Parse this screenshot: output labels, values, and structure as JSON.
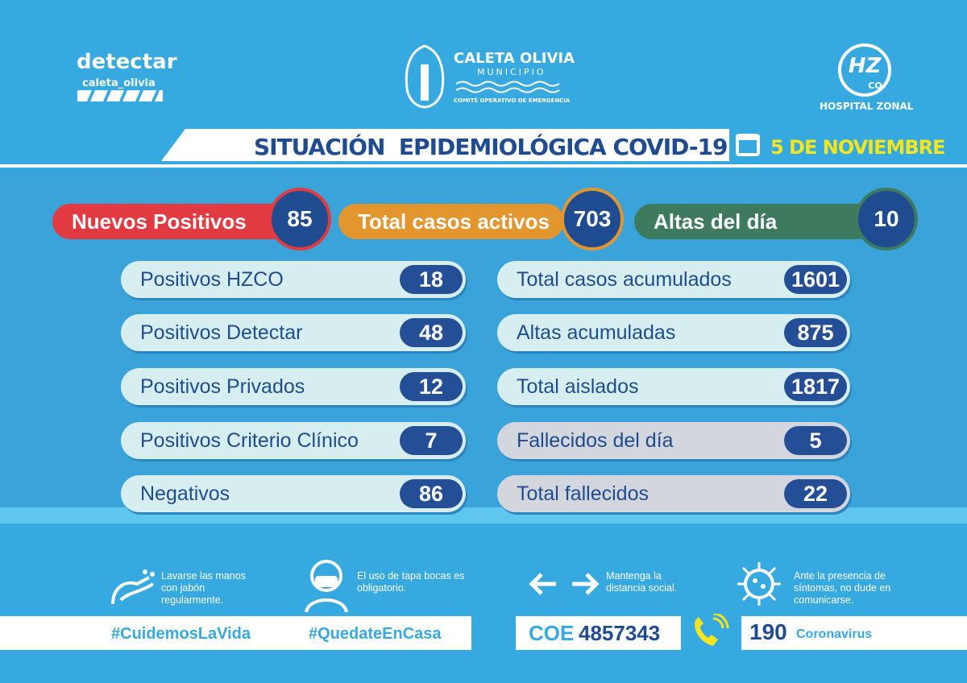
{
  "header": {
    "detectar": "detectar",
    "detectar_sub": "caleta_olivia",
    "muni_title": "CALETA OLIVIA",
    "muni_sub": "MUNICIPIO",
    "muni_committee": "COMITÉ OPERATIVO DE EMERGENCIA",
    "hospital_logo": "HZ",
    "hospital_logo_sub": "CO",
    "hospital": "HOSPITAL ZONAL"
  },
  "banner": {
    "title": "SITUACIÓN  EPIDEMIOLÓGICA COVID-19",
    "date": "5 DE NOVIEMBRE"
  },
  "highlights": [
    {
      "label": "Nuevos Positivos",
      "value": 85,
      "color": "#e23a41"
    },
    {
      "label": "Total casos activos",
      "value": 703,
      "color": "#e3952e"
    },
    {
      "label": "Altas del día",
      "value": 10,
      "color": "#3d7a5e"
    }
  ],
  "left_stats": [
    {
      "label": "Positivos HZCO",
      "value": 18
    },
    {
      "label": "Positivos Detectar",
      "value": 48
    },
    {
      "label": "Positivos Privados",
      "value": 12
    },
    {
      "label": "Positivos Criterio Clínico",
      "value": 7
    },
    {
      "label": "Negativos",
      "value": 86
    }
  ],
  "right_stats": [
    {
      "label": "Total casos acumulados",
      "value": 1601
    },
    {
      "label": "Altas acumuladas",
      "value": 875
    },
    {
      "label": "Total aislados",
      "value": 1817
    },
    {
      "label": "Fallecidos del día",
      "value": 5
    },
    {
      "label": "Total fallecidos",
      "value": 22
    }
  ],
  "tips": [
    "Lavarse las manos con jabón regularmente.",
    "El uso de tapa bocas es obligatorio.",
    "Mantenga la distancia social.",
    "Ante la presencia de síntomas, no dude en comunicarse."
  ],
  "hashtags": [
    "#CuidemosLaVida",
    "#QuedateEnCasa"
  ],
  "contacts": {
    "coe_label": "COE",
    "coe_number": "4857343",
    "emergency_number": "190",
    "emergency_label": "Coronavirus"
  }
}
